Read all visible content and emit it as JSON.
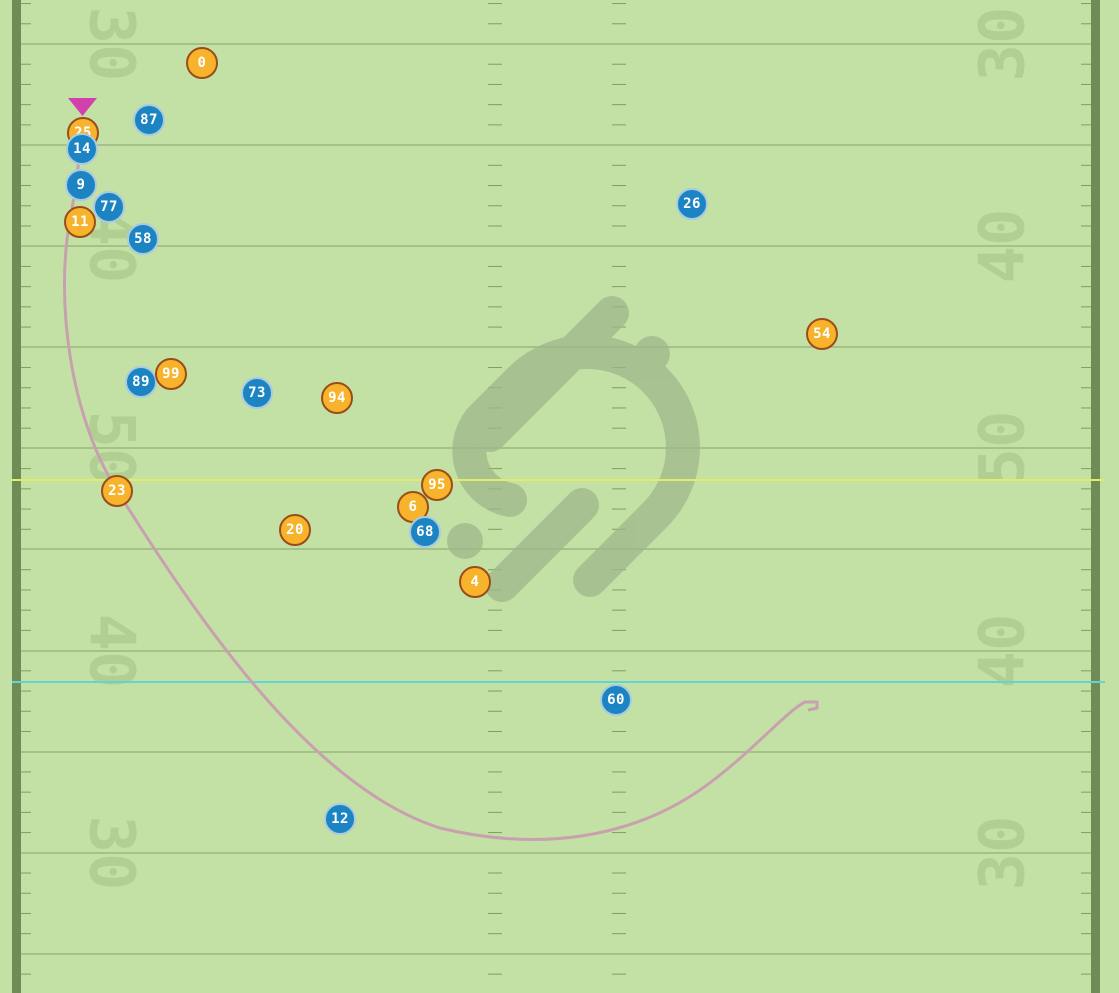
{
  "field": {
    "turf_color": "#c4e1a5",
    "sideline_color": "#6f8c57",
    "hash_color": "#7f9d64",
    "line_color": "#93ad7b",
    "number_color": "#b2cf93",
    "yard_numbers": [
      {
        "label": "30",
        "side": "left"
      },
      {
        "label": "30",
        "side": "right"
      },
      {
        "label": "40",
        "side": "left"
      },
      {
        "label": "40",
        "side": "right"
      },
      {
        "label": "50",
        "side": "left"
      },
      {
        "label": "50",
        "side": "right"
      },
      {
        "label": "40",
        "side": "left"
      },
      {
        "label": "40",
        "side": "right"
      },
      {
        "label": "30",
        "side": "left"
      },
      {
        "label": "30",
        "side": "right"
      }
    ]
  },
  "overlays": {
    "line_of_scrimmage_color": "#e5ea6b",
    "first_down_line_color": "#5fd6cf",
    "ball_path_color": "#c9a1ae",
    "ball_marker_color": "#d43fae",
    "logo_color": "#9fb78b"
  },
  "teams": {
    "away": {
      "fill": "#f7b32b",
      "stroke": "#9a4d19"
    },
    "home": {
      "fill": "#1d84c3",
      "stroke": "#a7cbe1"
    }
  },
  "players": [
    {
      "number": "0",
      "team": "away"
    },
    {
      "number": "25",
      "team": "away"
    },
    {
      "number": "11",
      "team": "away"
    },
    {
      "number": "99",
      "team": "away"
    },
    {
      "number": "94",
      "team": "away"
    },
    {
      "number": "23",
      "team": "away"
    },
    {
      "number": "20",
      "team": "away"
    },
    {
      "number": "95",
      "team": "away"
    },
    {
      "number": "6",
      "team": "away"
    },
    {
      "number": "4",
      "team": "away"
    },
    {
      "number": "54",
      "team": "away"
    },
    {
      "number": "87",
      "team": "home"
    },
    {
      "number": "14",
      "team": "home"
    },
    {
      "number": "9",
      "team": "home"
    },
    {
      "number": "77",
      "team": "home"
    },
    {
      "number": "58",
      "team": "home"
    },
    {
      "number": "89",
      "team": "home"
    },
    {
      "number": "73",
      "team": "home"
    },
    {
      "number": "26",
      "team": "home"
    },
    {
      "number": "68",
      "team": "home"
    },
    {
      "number": "60",
      "team": "home"
    },
    {
      "number": "12",
      "team": "home"
    }
  ]
}
